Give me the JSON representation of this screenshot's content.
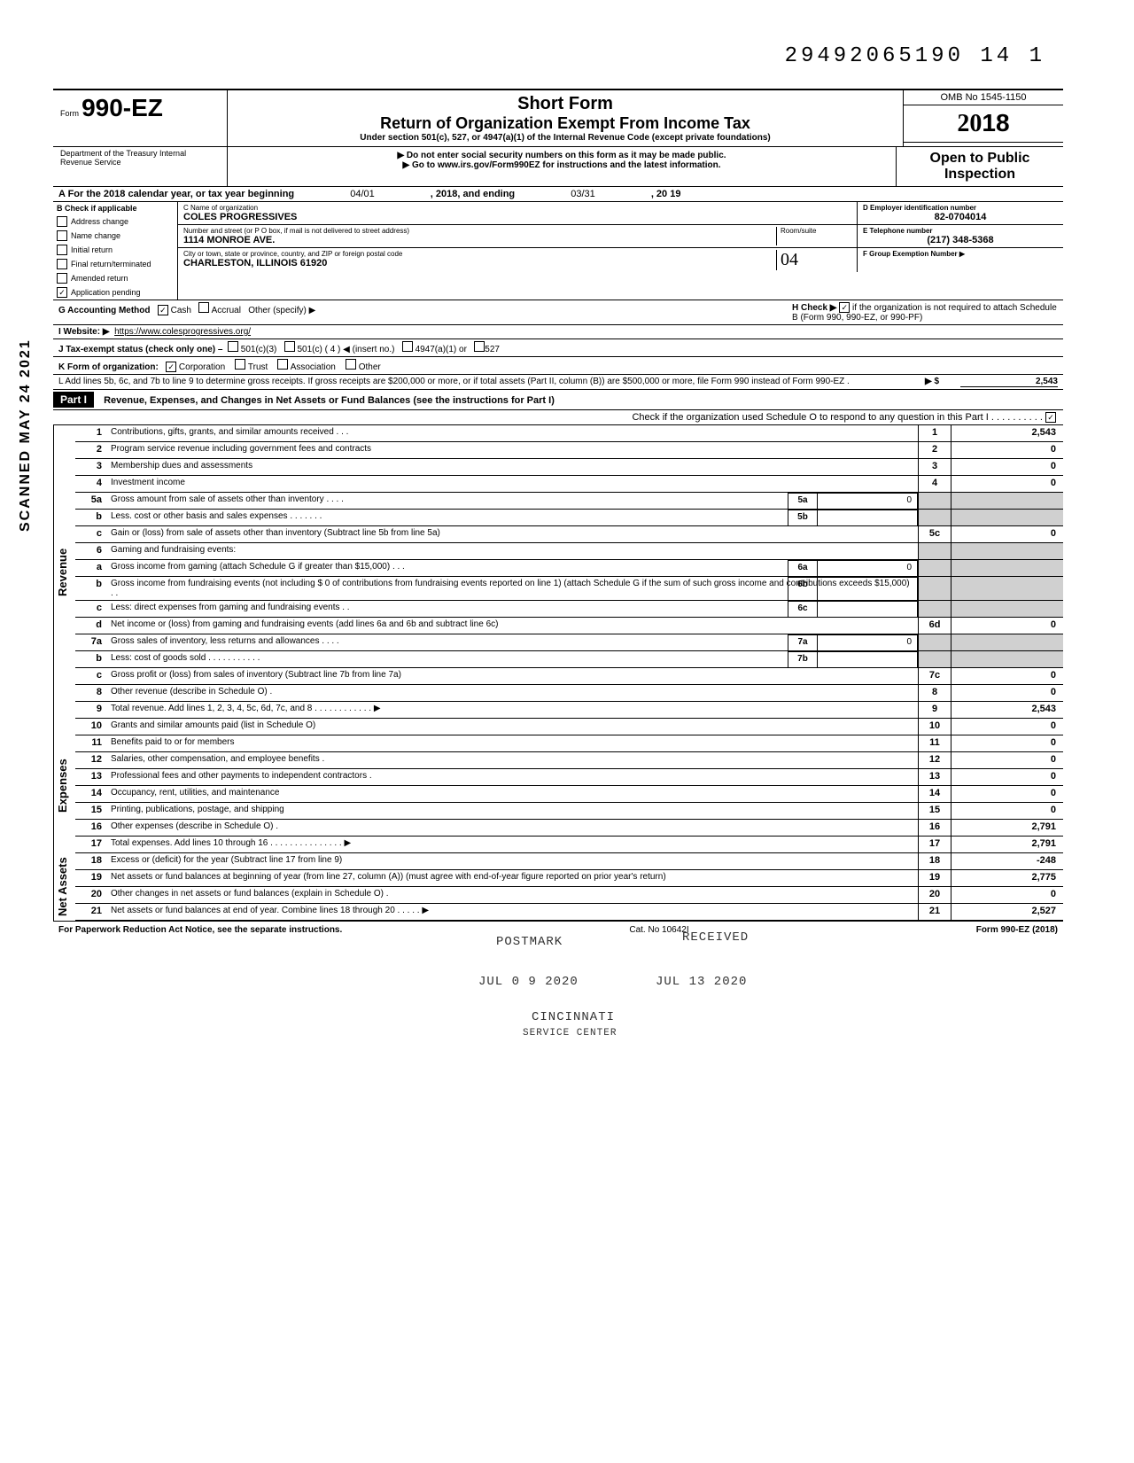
{
  "meta": {
    "dln": "29492065190 14  1",
    "scanned_stamp": "SCANNED MAY 24 2021",
    "omb": "OMB No 1545-1150",
    "tax_year": "2018",
    "open": "Open to Public Inspection",
    "form_prefix": "Form",
    "form_number": "990-EZ",
    "short_form": "Short Form",
    "title": "Return of Organization Exempt From Income Tax",
    "subtitle": "Under section 501(c), 527, or 4947(a)(1) of the Internal Revenue Code (except private foundations)",
    "warn1": "▶ Do not enter social security numbers on this form as it may be made public.",
    "warn2": "▶ Go to www.irs.gov/Form990EZ for instructions and the latest information.",
    "dept": "Department of the Treasury Internal Revenue Service"
  },
  "a": {
    "label": "A  For the 2018 calendar year, or tax year beginning",
    "begin": "04/01",
    "mid": ", 2018, and ending",
    "end": "03/31",
    "tail": ", 20  19"
  },
  "b": {
    "label": "B  Check if applicable",
    "items": [
      "Address change",
      "Name change",
      "Initial return",
      "Final return/terminated",
      "Amended return",
      "Application pending"
    ],
    "checked_index": 5
  },
  "c": {
    "label": "C  Name of organization",
    "name": "COLES PROGRESSIVES",
    "addr_label": "Number and street (or P O  box, if mail is not delivered to street address)",
    "addr": "1114 MONROE AVE.",
    "city_label": "City or town, state or province, country, and ZIP or foreign postal code",
    "city": "CHARLESTON, ILLINOIS  61920",
    "room_label": "Room/suite",
    "room_hand": "04"
  },
  "d": {
    "label": "D Employer identification number",
    "value": "82-0704014"
  },
  "e": {
    "label": "E Telephone number",
    "value": "(217) 348-5368"
  },
  "f": {
    "label": "F Group Exemption Number ▶",
    "value": ""
  },
  "g": {
    "label": "G  Accounting Method",
    "cash": "Cash",
    "accrual": "Accrual",
    "other": "Other (specify) ▶",
    "cash_checked": true
  },
  "h": {
    "label": "H  Check ▶",
    "text": "if the organization is not required to attach Schedule B (Form 990, 990-EZ, or 990-PF)",
    "checked": true
  },
  "i": {
    "label": "I  Website: ▶",
    "value": "https://www.colesprogressives.org/"
  },
  "j": {
    "label": "J  Tax-exempt status (check only one) –",
    "c3": "501(c)(3)",
    "c": "501(c) (  4  ) ◀ (insert no.)",
    "a1": "4947(a)(1) or",
    "v527": "527"
  },
  "k": {
    "label": "K  Form of organization:",
    "corp": "Corporation",
    "trust": "Trust",
    "assoc": "Association",
    "other": "Other",
    "corp_checked": true
  },
  "l": {
    "text": "L  Add lines 5b, 6c, and 7b to line 9 to determine gross receipts. If gross receipts are $200,000 or more, or if total assets (Part II, column (B)) are $500,000 or more, file Form 990 instead of Form 990-EZ .",
    "arrow": "▶   $",
    "value": "2,543"
  },
  "part1": {
    "label": "Part I",
    "title": "Revenue, Expenses, and Changes in Net Assets or Fund Balances (see the instructions for Part I)",
    "check_o": "Check if the organization used Schedule O to respond to any question in this Part I  .  .  .  .  .  .  .  .  .  .",
    "check_o_checked": true
  },
  "rev_label": "Revenue",
  "exp_label": "Expenses",
  "na_label": "Net Assets",
  "lines": {
    "1": {
      "n": "1",
      "d": "Contributions, gifts, grants, and similar amounts received .   .   .",
      "v": "2,543"
    },
    "2": {
      "n": "2",
      "d": "Program service revenue including government fees and contracts",
      "v": "0"
    },
    "3": {
      "n": "3",
      "d": "Membership dues and assessments",
      "v": "0"
    },
    "4": {
      "n": "4",
      "d": "Investment income",
      "v": "0"
    },
    "5a": {
      "n": "5a",
      "d": "Gross amount from sale of assets other than inventory   .   .   .   .",
      "iv": "0",
      "in": "5a"
    },
    "5b": {
      "n": "b",
      "d": "Less. cost or other basis and sales expenses .   .   .   .   .   .   .",
      "iv": "",
      "in": "5b"
    },
    "5c": {
      "n": "c",
      "d": "Gain or (loss) from sale of assets other than inventory (Subtract line 5b from line 5a)",
      "rn": "5c",
      "v": "0"
    },
    "6": {
      "n": "6",
      "d": "Gaming and fundraising events:"
    },
    "6a": {
      "n": "a",
      "d": "Gross income from gaming (attach Schedule G if greater than $15,000)  .   .   .",
      "iv": "0",
      "in": "6a"
    },
    "6b": {
      "n": "b",
      "d": "Gross income from fundraising events (not including  $                        0 of contributions from fundraising events reported on line 1) (attach Schedule G if the sum of such gross income and contributions exceeds $15,000) .   .",
      "iv": "",
      "in": "6b"
    },
    "6c": {
      "n": "c",
      "d": "Less: direct expenses from gaming and fundraising events   .   .",
      "iv": "",
      "in": "6c"
    },
    "6d": {
      "n": "d",
      "d": "Net income or (loss) from gaming and fundraising events (add lines 6a and 6b and subtract line 6c)",
      "rn": "6d",
      "v": "0"
    },
    "7a": {
      "n": "7a",
      "d": "Gross sales of inventory, less returns and allowances  .   .   .   .",
      "iv": "0",
      "in": "7a"
    },
    "7b": {
      "n": "b",
      "d": "Less: cost of goods sold   .   .   .   .   .   .   .   .   .   .   .",
      "iv": "",
      "in": "7b"
    },
    "7c": {
      "n": "c",
      "d": "Gross profit or (loss) from sales of inventory (Subtract line 7b from line 7a)",
      "rn": "7c",
      "v": "0"
    },
    "8": {
      "n": "8",
      "d": "Other revenue (describe in Schedule O) .",
      "v": "0"
    },
    "9": {
      "n": "9",
      "d": "Total revenue. Add lines 1, 2, 3, 4, 5c, 6d, 7c, and 8   .   .   .   .   .   .   .   .   .   .   .   . ▶",
      "v": "2,543"
    },
    "10": {
      "n": "10",
      "d": "Grants and similar amounts paid (list in Schedule O)",
      "v": "0"
    },
    "11": {
      "n": "11",
      "d": "Benefits paid to or for members",
      "v": "0"
    },
    "12": {
      "n": "12",
      "d": "Salaries, other compensation, and employee benefits .",
      "v": "0"
    },
    "13": {
      "n": "13",
      "d": "Professional fees and other payments to independent contractors .",
      "v": "0"
    },
    "14": {
      "n": "14",
      "d": "Occupancy, rent, utilities, and maintenance",
      "v": "0"
    },
    "15": {
      "n": "15",
      "d": "Printing, publications, postage, and shipping",
      "v": "0"
    },
    "16": {
      "n": "16",
      "d": "Other expenses (describe in Schedule O) .",
      "v": "2,791"
    },
    "17": {
      "n": "17",
      "d": "Total expenses. Add lines 10 through 16  .   .   .   .   .   .   .   .   .   .   .   .   .   .   . ▶",
      "v": "2,791"
    },
    "18": {
      "n": "18",
      "d": "Excess or (deficit) for the year (Subtract line 17 from line 9)",
      "v": "-248"
    },
    "19": {
      "n": "19",
      "d": "Net assets or fund balances at beginning of year (from line 27, column (A)) (must agree with end-of-year figure reported on prior year's return)",
      "v": "2,775"
    },
    "20": {
      "n": "20",
      "d": "Other changes in net assets or fund balances (explain in Schedule O) .",
      "v": "0"
    },
    "21": {
      "n": "21",
      "d": "Net assets or fund balances at end of year. Combine lines 18 through 20   .   .   .   .   . ▶",
      "v": "2,527"
    }
  },
  "stamps": {
    "received": "RECEIVED",
    "postmark": "POSTMARK",
    "date": "JUL  0 9  2020",
    "date2": "JUL  13 2020",
    "cincinnati": "CINCINNATI",
    "service": "SERVICE CENTER"
  },
  "footer": {
    "pra": "For Paperwork Reduction Act Notice, see the separate instructions.",
    "cat": "Cat. No  10642I",
    "form": "Form 990-EZ (2018)"
  }
}
